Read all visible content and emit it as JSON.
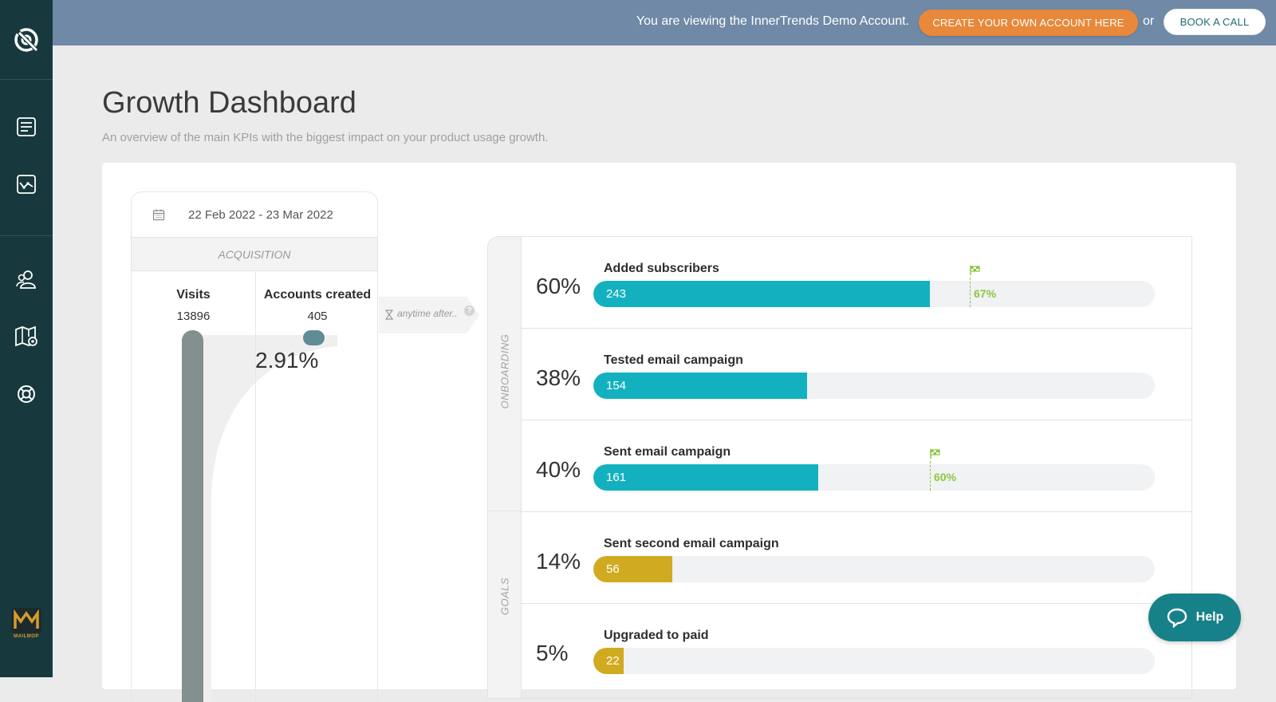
{
  "banner": {
    "demo_text": "You are viewing the InnerTrends Demo Account.",
    "create_label": "CREATE YOUR OWN ACCOUNT HERE",
    "or_text": "or",
    "book_label": "BOOK A CALL"
  },
  "sidebar": {
    "items": [
      {
        "icon": "reports-icon"
      },
      {
        "icon": "analytics-icon"
      },
      {
        "icon": "users-icon"
      },
      {
        "icon": "journey-map-icon"
      },
      {
        "icon": "support-icon"
      }
    ],
    "brand_text": "MAILMOP"
  },
  "page": {
    "title": "Growth Dashboard",
    "subtitle": "An overview of the main KPIs with the biggest impact on your product usage growth."
  },
  "date_range": "22 Feb 2022 - 23 Mar 2022",
  "acquisition": {
    "header": "ACQUISITION",
    "visits_label": "Visits",
    "visits_value": "13896",
    "accounts_label": "Accounts created",
    "accounts_value": "405",
    "conversion_rate": "2.91%",
    "anytime_label": "anytime after.."
  },
  "groups": {
    "onboarding": "ONBOARDING",
    "goals": "GOALS"
  },
  "metrics": [
    {
      "label": "Added subscribers",
      "pct": "60%",
      "count": "243",
      "fill": 0.6,
      "color": "#13b1bf",
      "goal": "67%",
      "goal_pos": 0.67
    },
    {
      "label": "Tested email campaign",
      "pct": "38%",
      "count": "154",
      "fill": 0.38,
      "color": "#13b1bf"
    },
    {
      "label": "Sent email campaign",
      "pct": "40%",
      "count": "161",
      "fill": 0.4,
      "color": "#13b1bf",
      "goal": "60%",
      "goal_pos": 0.6
    },
    {
      "label": "Sent second email campaign",
      "pct": "14%",
      "count": "56",
      "fill": 0.14,
      "color": "#d0aa21"
    },
    {
      "label": "Upgraded to paid",
      "pct": "5%",
      "count": "22",
      "fill": 0.05,
      "color": "#d0aa21"
    }
  ],
  "help_label": "Help"
}
